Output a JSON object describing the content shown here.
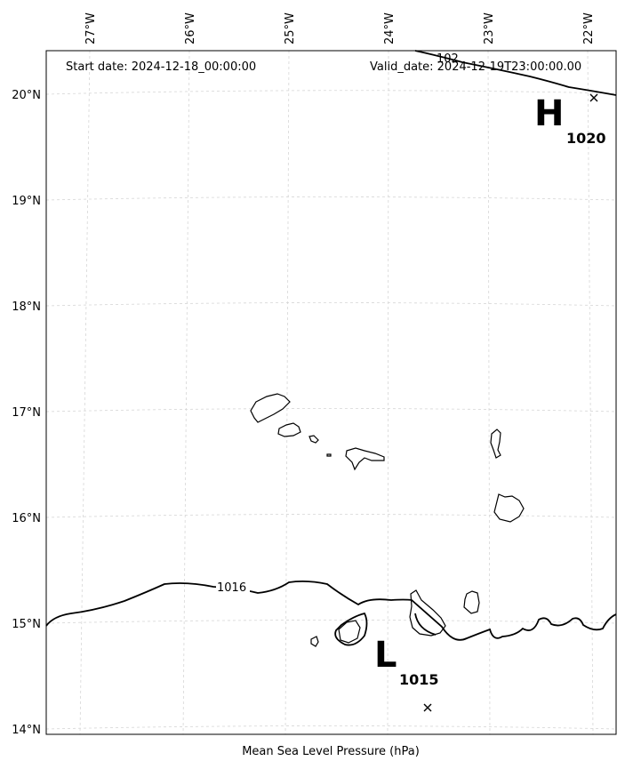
{
  "header": {
    "start_date": "Start date: 2024-12-18_00:00:00",
    "valid_date": "Valid_date: 2024-12-19T23:00:00.00"
  },
  "footer": {
    "caption": "Mean Sea Level Pressure (hPa)"
  },
  "axes": {
    "lon_labels": [
      "27°W",
      "26°W",
      "25°W",
      "24°W",
      "23°W",
      "22°W"
    ],
    "lat_labels": [
      "20°N",
      "19°N",
      "18°N",
      "17°N",
      "16°N",
      "15°N",
      "14°N"
    ]
  },
  "centers": {
    "high": {
      "letter": "H",
      "value": "1020"
    },
    "low": {
      "letter": "L",
      "value": "1015"
    }
  },
  "isobars": {
    "label_1016": "1016",
    "label_partial_top": "102"
  }
}
